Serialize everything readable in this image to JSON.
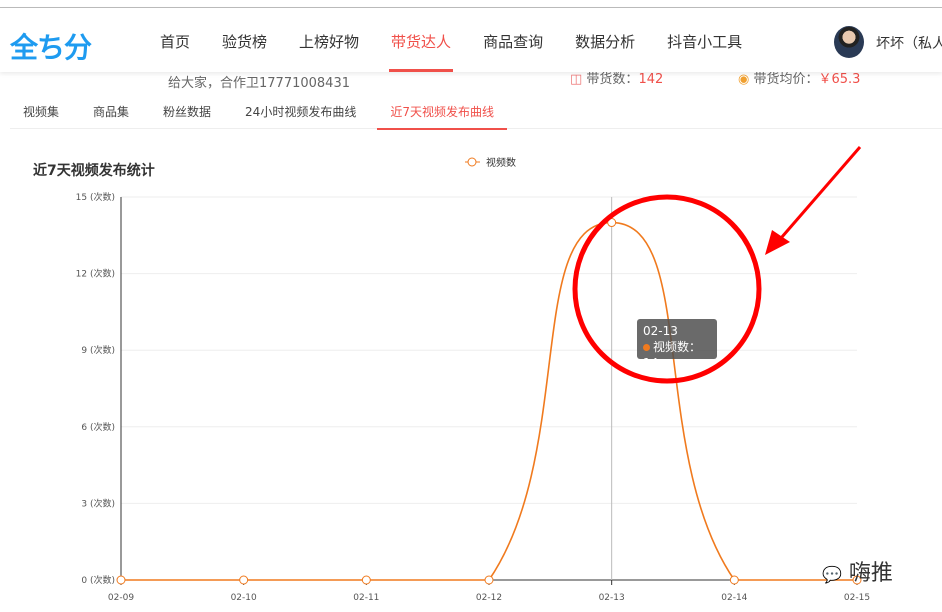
{
  "header": {
    "logo": "全ち分",
    "nav": [
      "首页",
      "验货榜",
      "上榜好物",
      "带货达人",
      "商品查询",
      "数据分析",
      "抖音小工具"
    ],
    "active_nav": 3,
    "user": "坏坏（私人"
  },
  "profile": {
    "desc": "给大家，合作卫17771008431",
    "stats": [
      {
        "label": "带货数：",
        "value": "142"
      },
      {
        "label": "带货均价：",
        "value": "￥65.3"
      }
    ]
  },
  "tabs": [
    "视频集",
    "商品集",
    "粉丝数据",
    "24小时视频发布曲线",
    "近7天视频发布曲线"
  ],
  "active_tab": 4,
  "chart_data": {
    "type": "line",
    "title": "近7天视频发布统计",
    "categories": [
      "02-09",
      "02-10",
      "02-11",
      "02-12",
      "02-13",
      "02-14",
      "02-15"
    ],
    "series": [
      {
        "name": "视频数",
        "values": [
          0,
          0,
          0,
          0,
          14,
          0,
          0
        ],
        "color": "#f07a1e"
      }
    ],
    "ylim": [
      0,
      15
    ],
    "yticks": [
      0,
      3,
      6,
      9,
      12,
      15
    ],
    "yunit": "(次数)",
    "smooth": true,
    "grid": true,
    "legend": "top-center"
  },
  "tooltip": {
    "title": "02-13",
    "label": "视频数：14"
  },
  "annotation": {
    "circle_color": "#ff0000"
  },
  "watermark": "嗨推"
}
